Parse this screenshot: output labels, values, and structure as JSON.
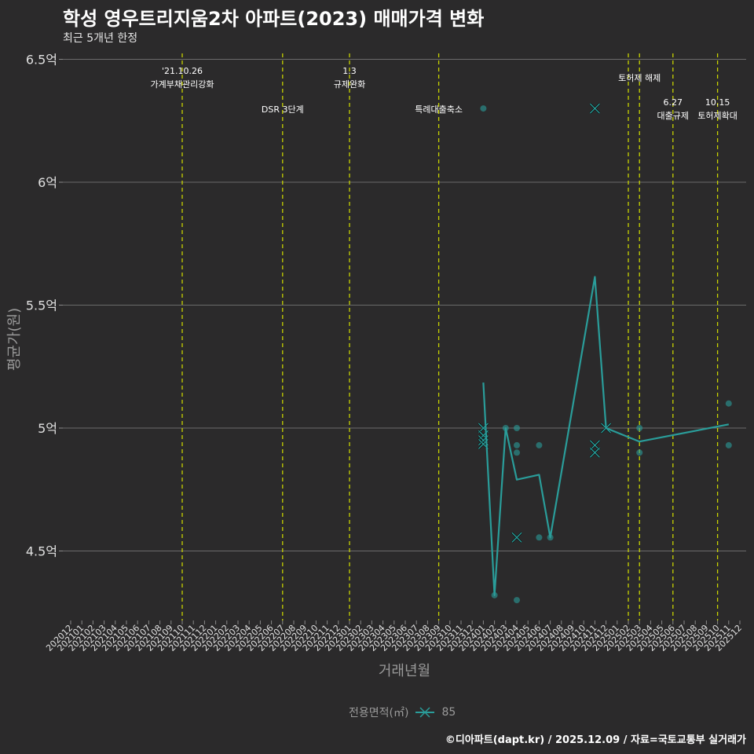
{
  "header": {
    "title": "학성 영우트리지움2차 아파트(2023) 매매가격 변화",
    "subtitle": "최근 5개년 한정"
  },
  "legend": {
    "title": "전용면적(㎡)",
    "items": [
      {
        "label": "85",
        "color": "#2a9d9a",
        "marker": "x-line"
      }
    ]
  },
  "footer": "©디아파트(dapt.kr) / 2025.12.09 / 자료=국토교통부 실거래가",
  "colors": {
    "background": "#2b2a2b",
    "series": "#2a9d9a",
    "event_line": "#c8d400",
    "grid": "#6b6b6b"
  },
  "chart_data": {
    "type": "line",
    "title": "학성 영우트리지움2차 아파트(2023) 매매가격 변화",
    "subtitle": "최근 5개년 한정",
    "xlabel": "거래년월",
    "ylabel": "평균가(원)",
    "ylim": [
      4.2,
      6.5
    ],
    "yticks": [
      {
        "value": 4.5,
        "label": "4.5억"
      },
      {
        "value": 5.0,
        "label": "5억"
      },
      {
        "value": 5.5,
        "label": "5.5억"
      },
      {
        "value": 6.0,
        "label": "6억"
      },
      {
        "value": 6.5,
        "label": "6.5억"
      }
    ],
    "x_ticks": [
      "202012",
      "202101",
      "202102",
      "202103",
      "202104",
      "202105",
      "202106",
      "202107",
      "202108",
      "202109",
      "202110",
      "202111",
      "202112",
      "202201",
      "202202",
      "202203",
      "202204",
      "202205",
      "202206",
      "202207",
      "202208",
      "202209",
      "202210",
      "202211",
      "202212",
      "202301",
      "202302",
      "202303",
      "202304",
      "202305",
      "202306",
      "202307",
      "202308",
      "202309",
      "202310",
      "202311",
      "202312",
      "202401",
      "202402",
      "202403",
      "202404",
      "202405",
      "202406",
      "202407",
      "202408",
      "202409",
      "202410",
      "202411",
      "202412",
      "202501",
      "202502",
      "202503",
      "202504",
      "202505",
      "202506",
      "202507",
      "202508",
      "202509",
      "202510",
      "202511",
      "202512"
    ],
    "grid": true,
    "legend_position": "bottom",
    "series": [
      {
        "name": "85",
        "line": [
          {
            "x": "202401",
            "y": 5.185
          },
          {
            "x": "202402",
            "y": 4.32
          },
          {
            "x": "202403",
            "y": 5.0
          },
          {
            "x": "202404",
            "y": 4.79
          },
          {
            "x": "202406",
            "y": 4.81
          },
          {
            "x": "202407",
            "y": 4.555
          },
          {
            "x": "202411",
            "y": 5.615
          },
          {
            "x": "202412",
            "y": 5.0
          },
          {
            "x": "202503",
            "y": 4.945
          },
          {
            "x": "202511",
            "y": 5.015
          }
        ],
        "points": [
          {
            "x": "202401",
            "y": 6.3,
            "shape": "dot"
          },
          {
            "x": "202401",
            "y": 5.0,
            "shape": "x"
          },
          {
            "x": "202401",
            "y": 4.97,
            "shape": "x"
          },
          {
            "x": "202401",
            "y": 4.95,
            "shape": "x"
          },
          {
            "x": "202401",
            "y": 4.935,
            "shape": "x"
          },
          {
            "x": "202402",
            "y": 4.32,
            "shape": "dot"
          },
          {
            "x": "202403",
            "y": 5.0,
            "shape": "dot"
          },
          {
            "x": "202404",
            "y": 5.0,
            "shape": "dot"
          },
          {
            "x": "202404",
            "y": 4.93,
            "shape": "dot"
          },
          {
            "x": "202404",
            "y": 4.9,
            "shape": "dot"
          },
          {
            "x": "202404",
            "y": 4.555,
            "shape": "x"
          },
          {
            "x": "202404",
            "y": 4.3,
            "shape": "dot"
          },
          {
            "x": "202406",
            "y": 4.93,
            "shape": "dot"
          },
          {
            "x": "202406",
            "y": 4.555,
            "shape": "dot"
          },
          {
            "x": "202407",
            "y": 4.555,
            "shape": "dot"
          },
          {
            "x": "202411",
            "y": 6.3,
            "shape": "x"
          },
          {
            "x": "202411",
            "y": 4.93,
            "shape": "x"
          },
          {
            "x": "202411",
            "y": 4.9,
            "shape": "x"
          },
          {
            "x": "202412",
            "y": 5.0,
            "shape": "x"
          },
          {
            "x": "202503",
            "y": 5.0,
            "shape": "dot"
          },
          {
            "x": "202503",
            "y": 4.9,
            "shape": "dot"
          },
          {
            "x": "202511",
            "y": 5.1,
            "shape": "dot"
          },
          {
            "x": "202511",
            "y": 4.93,
            "shape": "dot"
          }
        ]
      }
    ],
    "annotations": [
      {
        "x": "202110",
        "lines": [
          "'21.10.26",
          "가계부채관리강화"
        ],
        "row": "top"
      },
      {
        "x": "202207",
        "lines": [
          "DSR 3단계"
        ],
        "row": "low"
      },
      {
        "x": "202301",
        "lines": [
          "1.3",
          "규제완화"
        ],
        "row": "top"
      },
      {
        "x": "202309",
        "lines": [
          "특례대출축소"
        ],
        "row": "low"
      },
      {
        "x": "202502",
        "lines": [],
        "row": "none"
      },
      {
        "x": "202503",
        "lines": [
          "토허제 해제"
        ],
        "row": "mid"
      },
      {
        "x": "202506",
        "lines": [
          "6.27",
          "대출규제"
        ],
        "row": "low2"
      },
      {
        "x": "202510",
        "lines": [
          "10.15",
          "토허제확대"
        ],
        "row": "low2"
      }
    ]
  }
}
